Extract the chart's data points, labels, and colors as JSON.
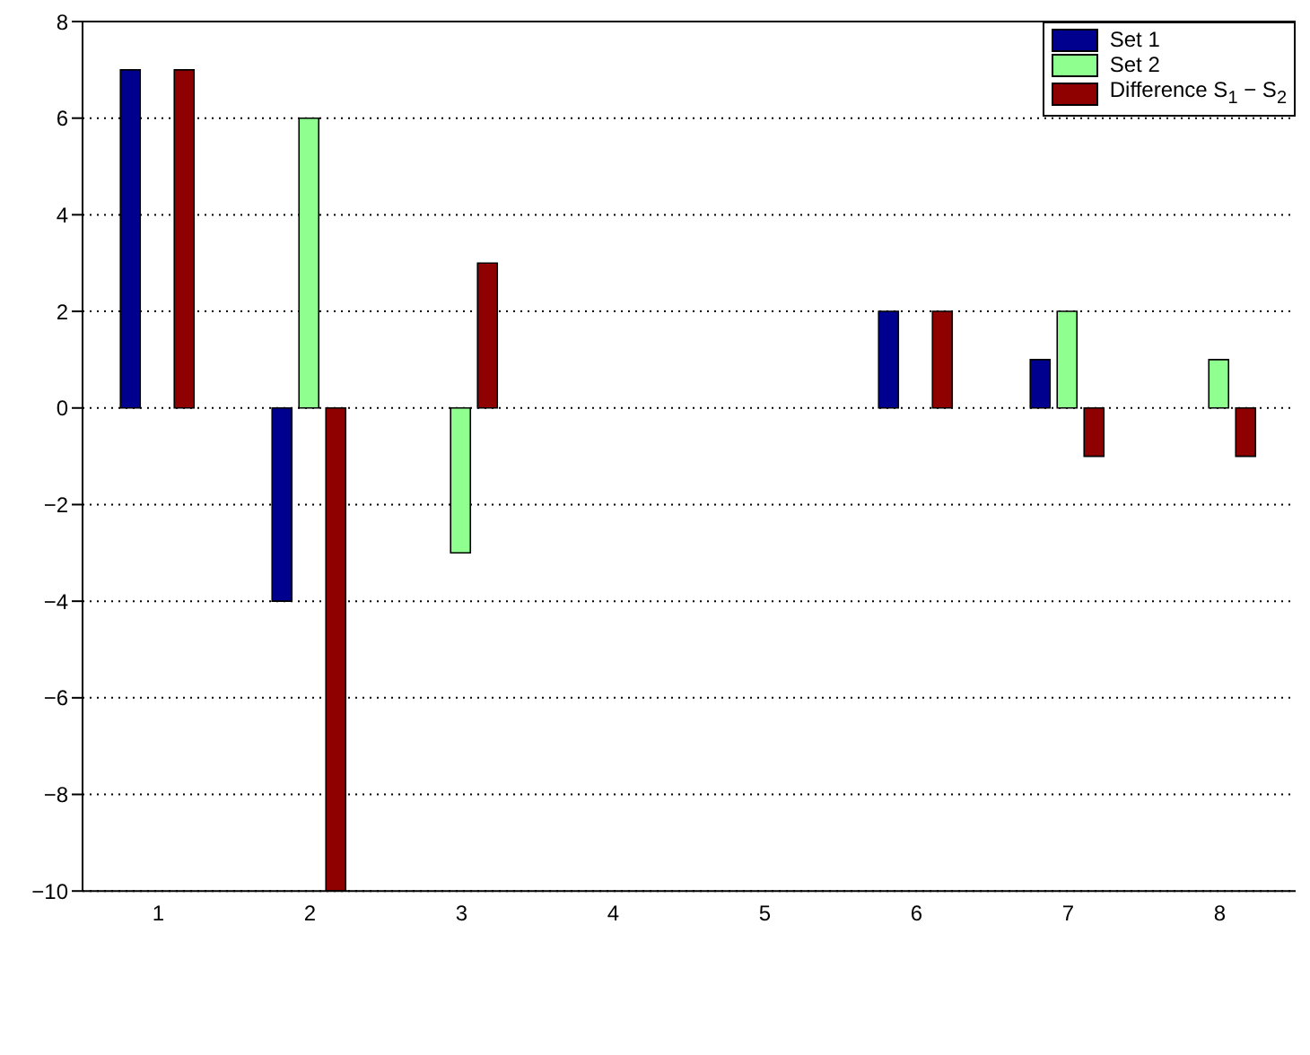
{
  "chart_data": {
    "type": "bar",
    "categories": [
      "1",
      "2",
      "3",
      "4",
      "5",
      "6",
      "7",
      "8"
    ],
    "series": [
      {
        "name": "Set 1",
        "color": "#00008f",
        "values": [
          7,
          -4,
          0,
          0,
          0,
          2,
          1,
          0
        ]
      },
      {
        "name": "Set 2",
        "color": "#8fff8f",
        "values": [
          0,
          6,
          -3,
          0,
          0,
          0,
          2,
          1
        ]
      },
      {
        "name": "Difference S$_{1}$ − S$_{2}$",
        "color": "#8f0000",
        "values": [
          7,
          -10,
          3,
          0,
          0,
          2,
          -1,
          -1
        ]
      }
    ],
    "ylim": [
      -10,
      8
    ],
    "yticks": [
      -10,
      -8,
      -6,
      -4,
      -2,
      0,
      2,
      4,
      6,
      8
    ],
    "grid": "y",
    "legend": "top right"
  }
}
